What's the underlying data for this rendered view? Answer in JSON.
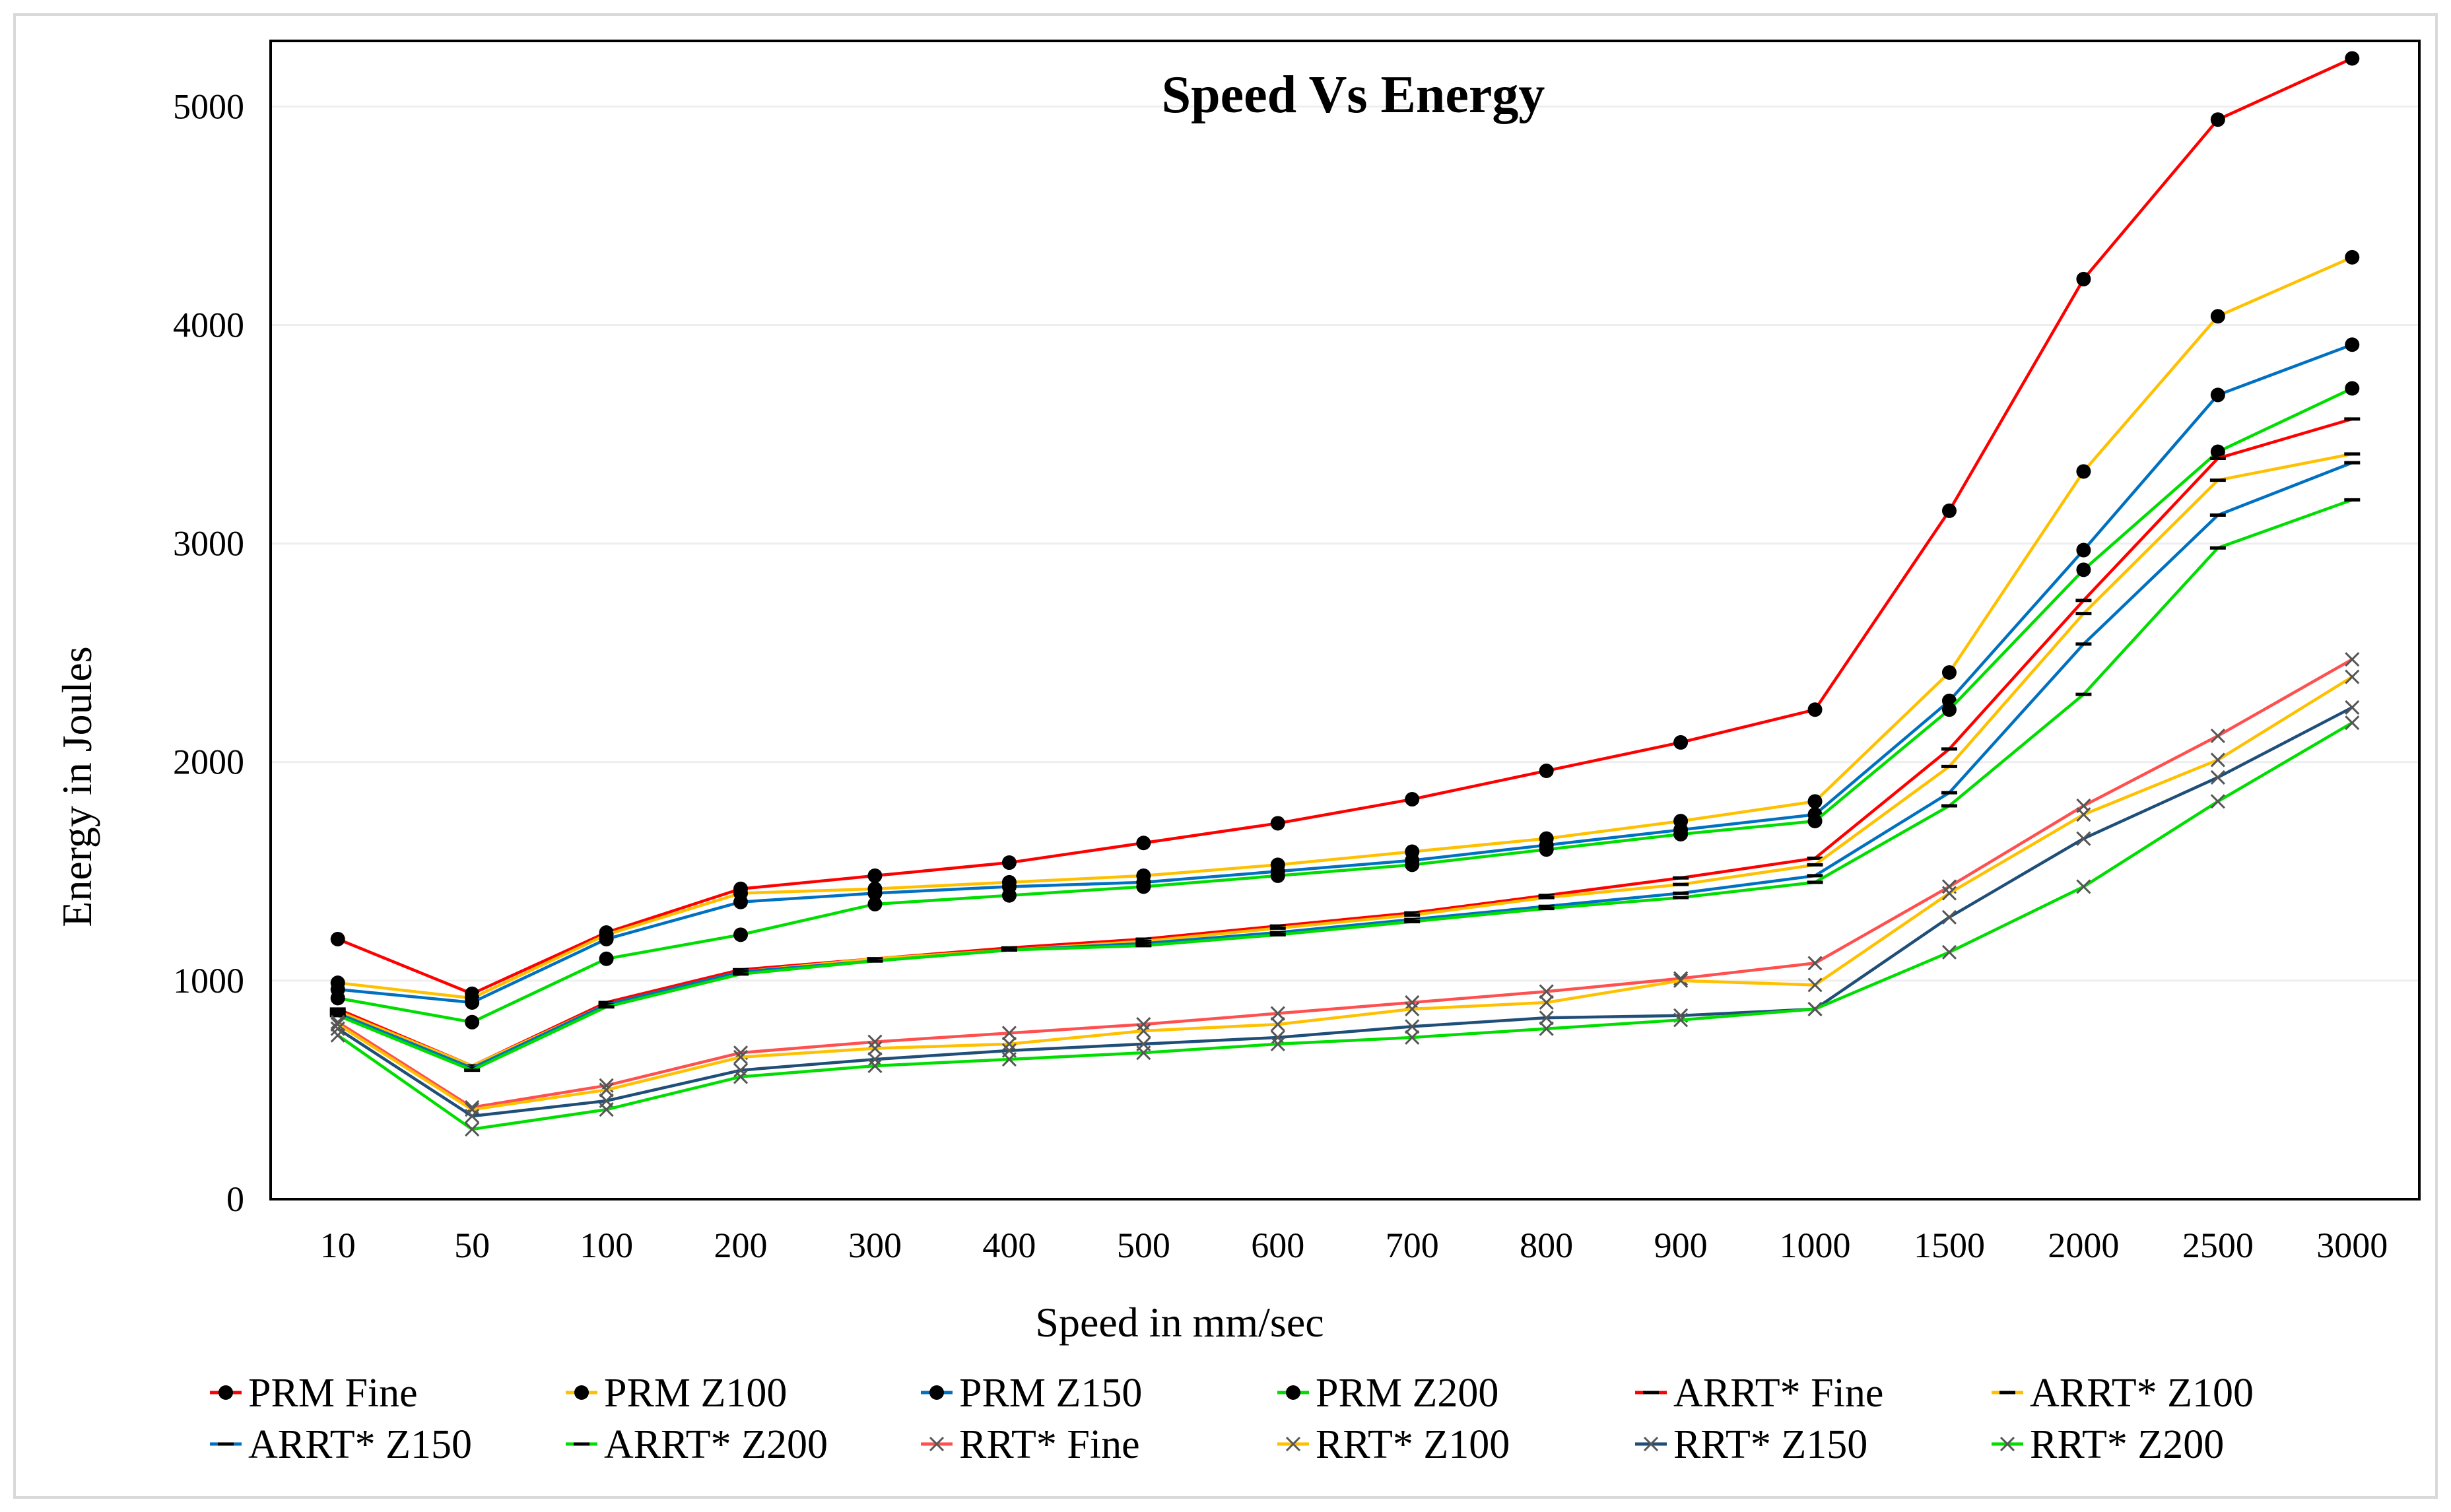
{
  "chart_data": {
    "type": "line",
    "title": "Speed Vs Energy",
    "xlabel": "Speed in mm/sec",
    "ylabel": "Energy in Joules",
    "categories": [
      "10",
      "50",
      "100",
      "200",
      "300",
      "400",
      "500",
      "600",
      "700",
      "800",
      "900",
      "1000",
      "1500",
      "2000",
      "2500",
      "3000"
    ],
    "ylim": [
      0,
      5300
    ],
    "yticks": [
      "0",
      "1000",
      "2000",
      "3000",
      "4000",
      "5000"
    ],
    "grid": "horizontal",
    "legend_position": "bottom",
    "series": [
      {
        "name": "PRM Fine",
        "color": "#ff0000",
        "marker": "dot",
        "values": [
          1190,
          940,
          1220,
          1420,
          1480,
          1540,
          1630,
          1720,
          1830,
          1960,
          2090,
          2240,
          3150,
          4210,
          4940,
          5220
        ]
      },
      {
        "name": "PRM Z100",
        "color": "#ffc000",
        "marker": "dot",
        "values": [
          990,
          920,
          1210,
          1400,
          1420,
          1450,
          1480,
          1530,
          1590,
          1650,
          1730,
          1820,
          2410,
          3330,
          4040,
          4310
        ]
      },
      {
        "name": "PRM Z150",
        "color": "#0070c0",
        "marker": "dot",
        "values": [
          960,
          900,
          1190,
          1360,
          1400,
          1430,
          1450,
          1500,
          1550,
          1620,
          1690,
          1760,
          2280,
          2970,
          3680,
          3910
        ]
      },
      {
        "name": "PRM Z200",
        "color": "#00dd00",
        "marker": "dot",
        "values": [
          920,
          810,
          1100,
          1210,
          1350,
          1390,
          1430,
          1480,
          1530,
          1600,
          1670,
          1730,
          2240,
          2880,
          3420,
          3710
        ]
      },
      {
        "name": "ARRT* Fine",
        "color": "#ff0000",
        "marker": "dash",
        "values": [
          870,
          610,
          900,
          1050,
          1100,
          1150,
          1190,
          1250,
          1310,
          1390,
          1470,
          1560,
          2060,
          2740,
          3390,
          3570
        ]
      },
      {
        "name": "ARRT* Z100",
        "color": "#ffc000",
        "marker": "dash",
        "values": [
          860,
          610,
          890,
          1040,
          1100,
          1140,
          1180,
          1240,
          1300,
          1380,
          1440,
          1530,
          1980,
          2680,
          3290,
          3410
        ]
      },
      {
        "name": "ARRT* Z150",
        "color": "#0070c0",
        "marker": "dash",
        "values": [
          850,
          600,
          890,
          1040,
          1090,
          1140,
          1170,
          1220,
          1280,
          1340,
          1400,
          1480,
          1860,
          2540,
          3130,
          3370
        ]
      },
      {
        "name": "ARRT* Z200",
        "color": "#00dd00",
        "marker": "dash",
        "values": [
          840,
          590,
          880,
          1030,
          1090,
          1140,
          1160,
          1210,
          1270,
          1330,
          1380,
          1450,
          1800,
          2310,
          2980,
          3200
        ]
      },
      {
        "name": "RRT* Fine",
        "color": "#ff5050",
        "marker": "x",
        "values": [
          810,
          420,
          520,
          670,
          720,
          760,
          800,
          850,
          900,
          950,
          1010,
          1080,
          1430,
          1800,
          2120,
          2470
        ]
      },
      {
        "name": "RRT* Z100",
        "color": "#ffc000",
        "marker": "x",
        "values": [
          800,
          410,
          500,
          650,
          690,
          710,
          770,
          800,
          870,
          900,
          1000,
          980,
          1400,
          1760,
          2010,
          2390
        ]
      },
      {
        "name": "RRT* Z150",
        "color": "#1f4e79",
        "marker": "x",
        "values": [
          780,
          380,
          450,
          590,
          640,
          680,
          710,
          740,
          790,
          830,
          840,
          870,
          1290,
          1650,
          1930,
          2250
        ]
      },
      {
        "name": "RRT* Z200",
        "color": "#00dd00",
        "marker": "x",
        "values": [
          750,
          320,
          410,
          560,
          610,
          640,
          670,
          710,
          740,
          780,
          820,
          870,
          1130,
          1430,
          1820,
          2180
        ]
      }
    ]
  }
}
